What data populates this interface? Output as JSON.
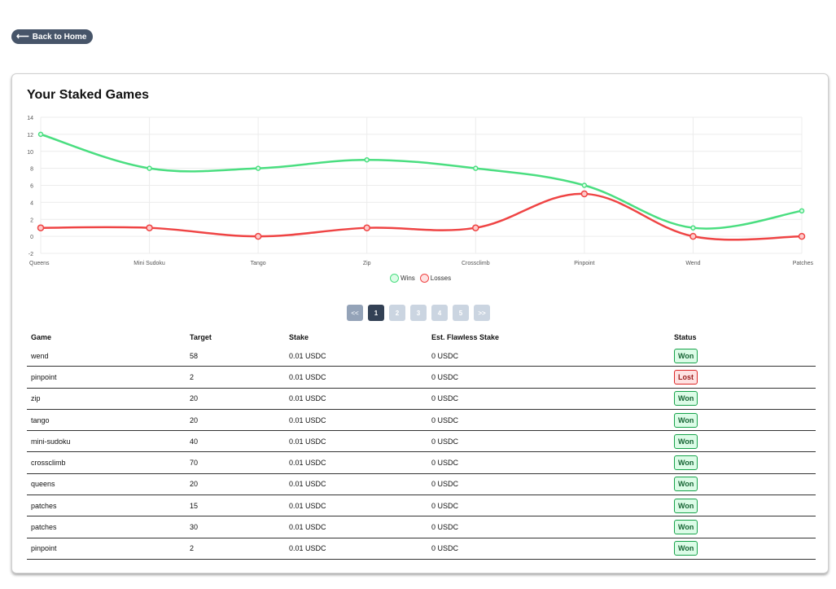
{
  "back_label": "Back to Home",
  "title": "Your Staked Games",
  "chart_data": {
    "type": "line",
    "categories": [
      "Queens",
      "Mini Sudoku",
      "Tango",
      "Zip",
      "Crossclimb",
      "Pinpoint",
      "Wend",
      "Patches"
    ],
    "series": [
      {
        "name": "Wins",
        "values": [
          12,
          8,
          8,
          9,
          8,
          6,
          1,
          3
        ],
        "color": "#4ade80"
      },
      {
        "name": "Losses",
        "values": [
          1,
          1,
          0,
          1,
          1,
          5,
          0,
          0
        ],
        "color": "#ef4444"
      }
    ],
    "yticks": [
      "14",
      "12",
      "10",
      "8",
      "6",
      "4",
      "2",
      "0",
      "-2"
    ],
    "ylim": [
      -2,
      14
    ],
    "legend_position": "bottom"
  },
  "pagination": {
    "prev": "<<",
    "pages": [
      "1",
      "2",
      "3",
      "4",
      "5"
    ],
    "next": ">>",
    "current": "1"
  },
  "table": {
    "headers": [
      "Game",
      "Target",
      "Stake",
      "Est. Flawless Stake",
      "Status"
    ],
    "rows": [
      {
        "game": "wend",
        "target": "58",
        "stake": "0.01 USDC",
        "flawless": "0 USDC",
        "status": "Won"
      },
      {
        "game": "pinpoint",
        "target": "2",
        "stake": "0.01 USDC",
        "flawless": "0 USDC",
        "status": "Lost"
      },
      {
        "game": "zip",
        "target": "20",
        "stake": "0.01 USDC",
        "flawless": "0 USDC",
        "status": "Won"
      },
      {
        "game": "tango",
        "target": "20",
        "stake": "0.01 USDC",
        "flawless": "0 USDC",
        "status": "Won"
      },
      {
        "game": "mini-sudoku",
        "target": "40",
        "stake": "0.01 USDC",
        "flawless": "0 USDC",
        "status": "Won"
      },
      {
        "game": "crossclimb",
        "target": "70",
        "stake": "0.01 USDC",
        "flawless": "0 USDC",
        "status": "Won"
      },
      {
        "game": "queens",
        "target": "20",
        "stake": "0.01 USDC",
        "flawless": "0 USDC",
        "status": "Won"
      },
      {
        "game": "patches",
        "target": "15",
        "stake": "0.01 USDC",
        "flawless": "0 USDC",
        "status": "Won"
      },
      {
        "game": "patches",
        "target": "30",
        "stake": "0.01 USDC",
        "flawless": "0 USDC",
        "status": "Won"
      },
      {
        "game": "pinpoint",
        "target": "2",
        "stake": "0.01 USDC",
        "flawless": "0 USDC",
        "status": "Won"
      }
    ]
  }
}
